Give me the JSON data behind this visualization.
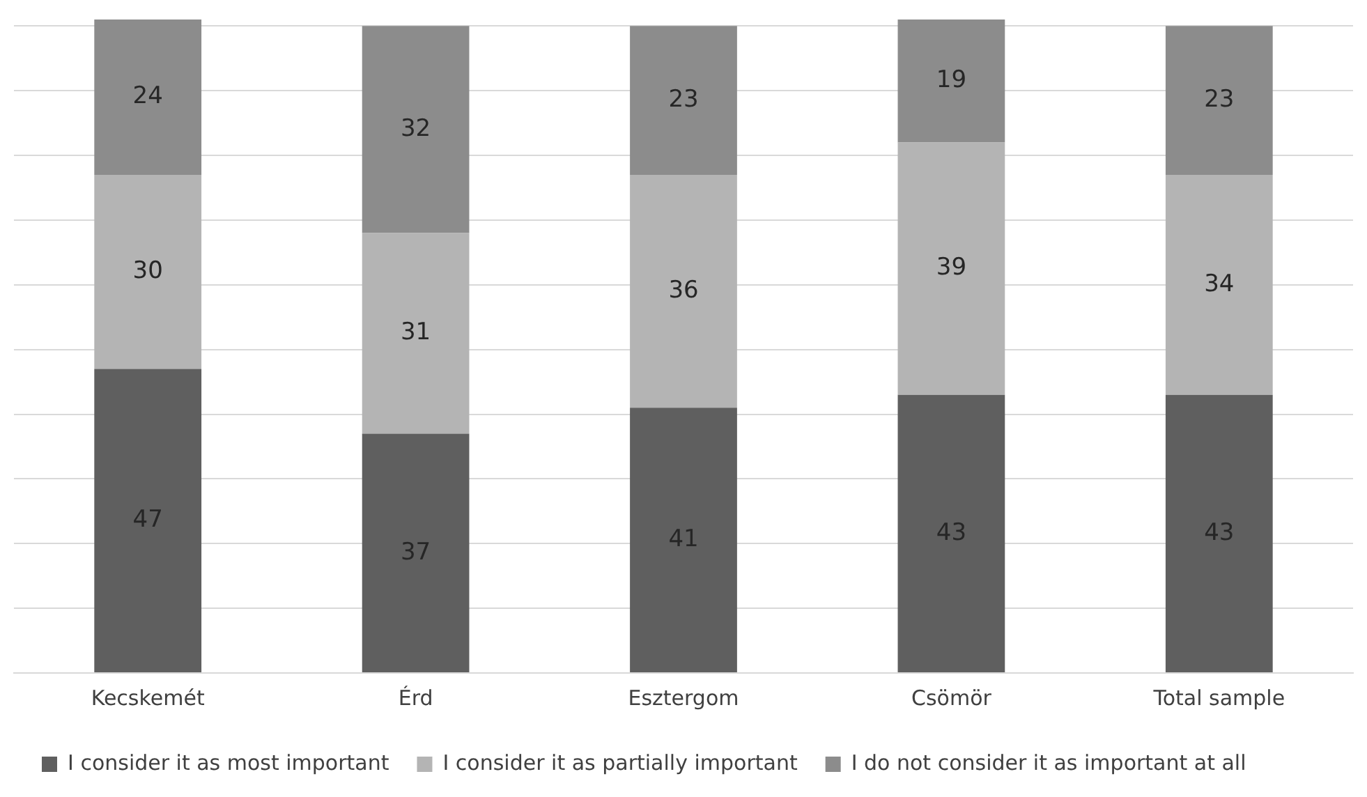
{
  "chart_data": {
    "type": "bar",
    "stacked": true,
    "categories": [
      "Kecskemét",
      "Érd",
      "Esztergom",
      "Csömör",
      "Total sample"
    ],
    "series": [
      {
        "name": "I consider it as most important",
        "color": "#5f5f5f",
        "values": [
          47,
          37,
          41,
          43,
          43
        ]
      },
      {
        "name": "I consider it as partially important",
        "color": "#b4b4b4",
        "values": [
          30,
          31,
          36,
          39,
          34
        ]
      },
      {
        "name": "I do not consider it as important at all",
        "color": "#8c8c8c",
        "values": [
          24,
          32,
          23,
          19,
          23
        ]
      }
    ],
    "ylim": [
      0,
      101
    ],
    "yticks": [
      {
        "value": 0,
        "label": null
      },
      {
        "value": 10,
        "label": null
      },
      {
        "value": 20,
        "label": null
      },
      {
        "value": 30,
        "label": null
      },
      {
        "value": 40,
        "label": null
      },
      {
        "value": 50,
        "label": null
      },
      {
        "value": 60,
        "label": null
      },
      {
        "value": 70,
        "label": null
      },
      {
        "value": 80,
        "label": null
      },
      {
        "value": 90,
        "label": null
      },
      {
        "value": 100,
        "label": null
      }
    ],
    "tick_labels": "x",
    "grid": "y",
    "legend": "bottom",
    "data_labels": true
  }
}
